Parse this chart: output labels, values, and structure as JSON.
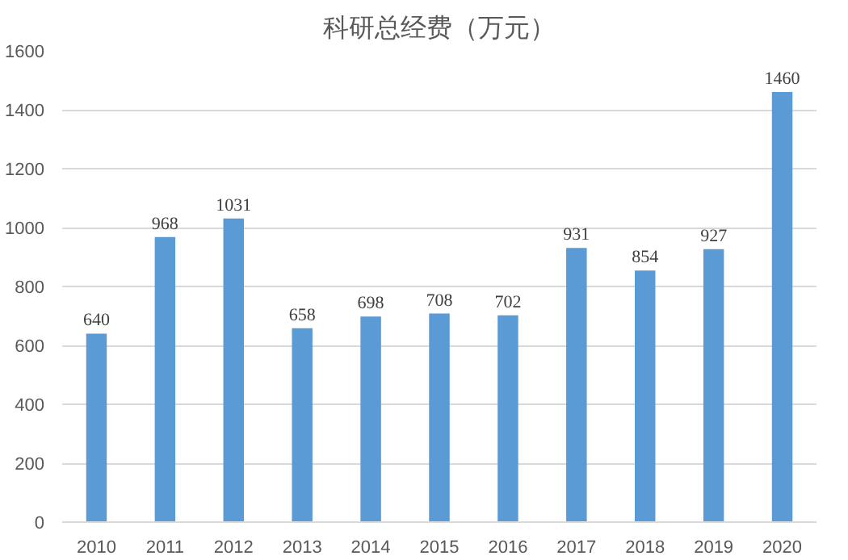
{
  "chart_data": {
    "type": "bar",
    "title": "科研总经费（万元）",
    "categories": [
      "2010",
      "2011",
      "2012",
      "2013",
      "2014",
      "2015",
      "2016",
      "2017",
      "2018",
      "2019",
      "2020"
    ],
    "values": [
      640,
      968,
      1031,
      658,
      698,
      708,
      702,
      931,
      854,
      927,
      1460
    ],
    "color": "#5b9bd5",
    "ylim": [
      0,
      1600
    ],
    "yticks": [
      0,
      200,
      400,
      600,
      800,
      1000,
      1200,
      1400,
      1600
    ],
    "grid": "y",
    "data_labels": true
  }
}
